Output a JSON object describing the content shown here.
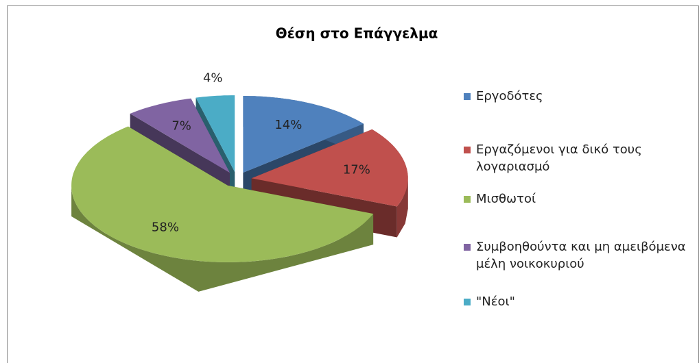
{
  "chart_data": {
    "type": "pie",
    "title": "Θέση στο Επάγγελμα",
    "categories": [
      "Εργοδότες",
      "Εργαζόμενοι για δικό τους λογαριασμό",
      "Μισθωτοί",
      "Συμβοηθούντα και μη αμειβόμενα μέλη νοικοκυριού",
      "\"Νέοι\""
    ],
    "values": [
      14,
      17,
      58,
      7,
      4
    ],
    "value_labels": [
      "14%",
      "17%",
      "58%",
      "7%",
      "4%"
    ],
    "colors": [
      "#4f81bd",
      "#c0504d",
      "#9bbb59",
      "#8064a2",
      "#4bacc6"
    ],
    "legend": "right"
  }
}
